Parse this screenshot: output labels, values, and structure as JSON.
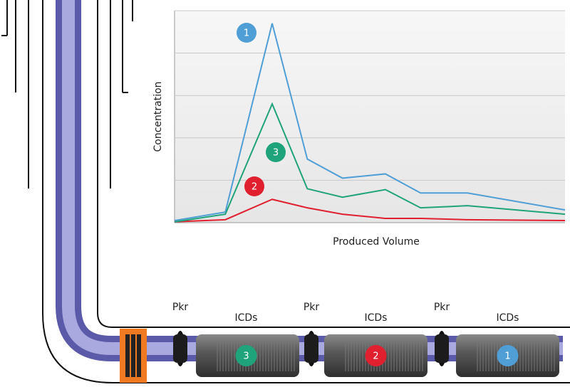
{
  "chart_data": {
    "type": "line",
    "x_label": "Produced Volume",
    "y_label": "Concentration",
    "x": [
      0,
      13,
      25,
      34,
      43,
      54,
      63,
      75,
      100
    ],
    "xlim": [
      0,
      100
    ],
    "ylim": [
      0,
      5
    ],
    "grid_lines": [
      1,
      2,
      3,
      4,
      5
    ],
    "series": [
      {
        "name": "1",
        "color": "#4f9fd6",
        "values": [
          0.05,
          0.25,
          4.7,
          1.5,
          1.05,
          1.15,
          0.7,
          0.7,
          0.3
        ]
      },
      {
        "name": "2",
        "color": "#e0202f",
        "values": [
          0.02,
          0.07,
          0.55,
          0.35,
          0.2,
          0.1,
          0.1,
          0.07,
          0.05
        ]
      },
      {
        "name": "3",
        "color": "#1fa37a",
        "values": [
          0.02,
          0.2,
          2.8,
          0.8,
          0.6,
          0.78,
          0.35,
          0.4,
          0.2
        ]
      }
    ]
  },
  "diagram": {
    "packers": [
      {
        "label": "Pkr"
      },
      {
        "label": "Pkr"
      },
      {
        "label": "Pkr"
      }
    ],
    "zones": [
      {
        "label": "ICDs",
        "tool": "3",
        "color": "#1fa37a"
      },
      {
        "label": "ICDs",
        "tool": "2",
        "color": "#e0202f"
      },
      {
        "label": "ICDs",
        "tool": "1",
        "color": "#4f9fd6"
      }
    ]
  }
}
